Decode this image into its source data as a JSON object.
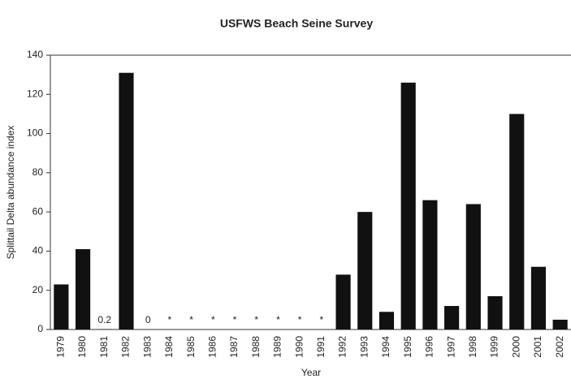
{
  "chart_data": {
    "type": "bar",
    "title": "USFWS Beach Seine Survey",
    "x_label": "Year",
    "y_label": "Splittail Delta abundance index",
    "categories": [
      "1979",
      "1980",
      "1981",
      "1982",
      "1983",
      "1984",
      "1985",
      "1986",
      "1987",
      "1988",
      "1989",
      "1990",
      "1991",
      "1992",
      "1993",
      "1994",
      "1995",
      "1996",
      "1997",
      "1998",
      "1999",
      "2000",
      "2001",
      "2002"
    ],
    "values": [
      23,
      41,
      0.2,
      131,
      0,
      null,
      null,
      null,
      null,
      null,
      null,
      null,
      null,
      28,
      60,
      9,
      126,
      66,
      12,
      64,
      17,
      110,
      32,
      5
    ],
    "value_labels": [
      null,
      null,
      "0.2",
      null,
      "0",
      "*",
      "*",
      "*",
      "*",
      "*",
      "*",
      "*",
      "*",
      null,
      null,
      null,
      null,
      null,
      null,
      null,
      null,
      null,
      null,
      null
    ],
    "color": "#111111",
    "ylim": [
      0,
      140
    ],
    "yticks": [
      0,
      20,
      40,
      60,
      80,
      100,
      120,
      140
    ],
    "grid": false
  }
}
